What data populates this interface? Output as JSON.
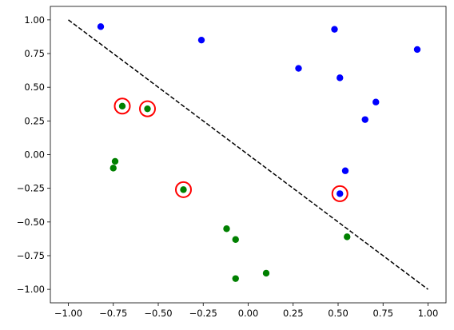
{
  "chart_data": {
    "type": "scatter",
    "title": "",
    "xlabel": "",
    "ylabel": "",
    "xlim": [
      -1.1,
      1.1
    ],
    "ylim": [
      -1.1,
      1.1
    ],
    "grid": false,
    "xticks": [
      -1.0,
      -0.75,
      -0.5,
      -0.25,
      0.0,
      0.25,
      0.5,
      0.75,
      1.0
    ],
    "xtick_labels": [
      "−1.00",
      "−0.75",
      "−0.50",
      "−0.25",
      "0.00",
      "0.25",
      "0.50",
      "0.75",
      "1.00"
    ],
    "yticks": [
      1.0,
      0.75,
      0.5,
      0.25,
      0.0,
      -0.25,
      -0.5,
      -0.75,
      -1.0
    ],
    "ytick_labels": [
      "1.00",
      "0.75",
      "0.50",
      "0.25",
      "0.00",
      "−0.25",
      "−0.50",
      "−0.75",
      "−1.00"
    ],
    "series": [
      {
        "color": "#0000ff",
        "points": [
          [
            -0.82,
            0.95
          ],
          [
            -0.26,
            0.85
          ],
          [
            0.48,
            0.93
          ],
          [
            0.94,
            0.78
          ],
          [
            0.28,
            0.64
          ],
          [
            0.51,
            0.57
          ],
          [
            0.71,
            0.39
          ],
          [
            0.65,
            0.26
          ],
          [
            0.54,
            -0.12
          ],
          [
            0.51,
            -0.29
          ]
        ]
      },
      {
        "color": "#008000",
        "points": [
          [
            -0.7,
            0.36
          ],
          [
            -0.56,
            0.34
          ],
          [
            -0.74,
            -0.05
          ],
          [
            -0.75,
            -0.1
          ],
          [
            -0.36,
            -0.26
          ],
          [
            -0.12,
            -0.55
          ],
          [
            -0.07,
            -0.63
          ],
          [
            0.55,
            -0.61
          ],
          [
            0.1,
            -0.88
          ],
          [
            -0.07,
            -0.92
          ]
        ]
      }
    ],
    "highlighted": {
      "color": "#ff0000",
      "points": [
        [
          -0.7,
          0.36
        ],
        [
          -0.56,
          0.34
        ],
        [
          -0.36,
          -0.26
        ],
        [
          0.51,
          -0.29
        ]
      ]
    },
    "reference_line": {
      "style": "dashed",
      "color": "#000000",
      "x": [
        -1.0,
        1.0
      ],
      "y": [
        1.0,
        -1.0
      ]
    }
  }
}
